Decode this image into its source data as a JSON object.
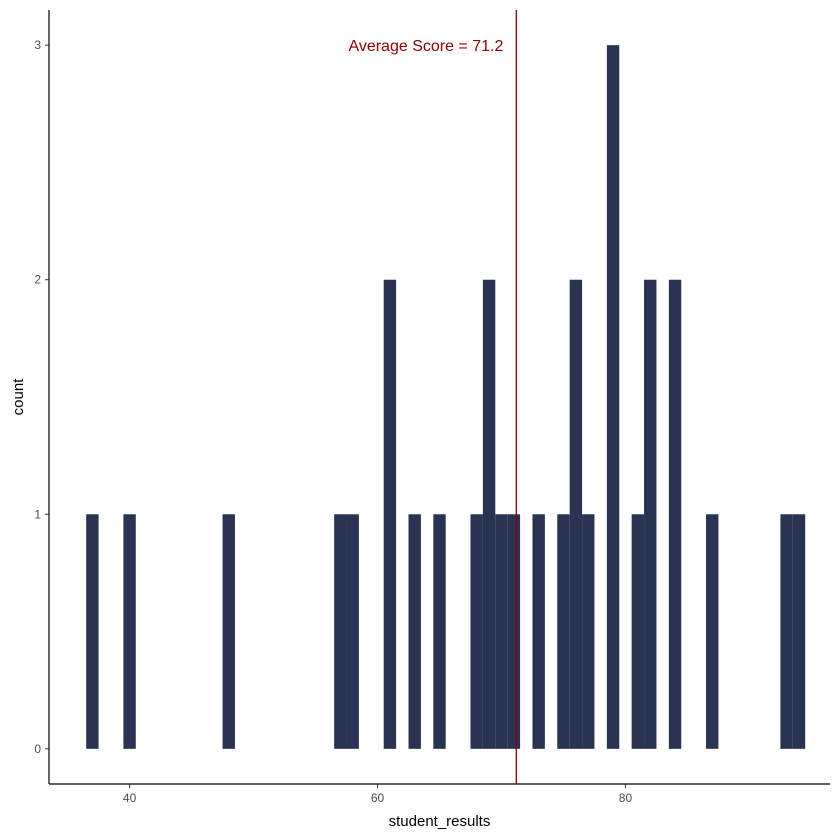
{
  "chart_data": {
    "type": "bar",
    "title": "",
    "xlabel": "student_results",
    "ylabel": "count",
    "xlim": [
      33.5,
      96.5
    ],
    "ylim": [
      -0.15,
      3.15
    ],
    "xticks": [
      40,
      60,
      80
    ],
    "yticks": [
      0,
      1,
      2,
      3
    ],
    "bin_width": 1.0,
    "bins": [
      {
        "x": 37.0,
        "count": 1
      },
      {
        "x": 40.0,
        "count": 1
      },
      {
        "x": 48.0,
        "count": 1
      },
      {
        "x": 57.0,
        "count": 1
      },
      {
        "x": 58.0,
        "count": 1
      },
      {
        "x": 61.0,
        "count": 2
      },
      {
        "x": 63.0,
        "count": 1
      },
      {
        "x": 65.0,
        "count": 1
      },
      {
        "x": 68.0,
        "count": 1
      },
      {
        "x": 69.0,
        "count": 2
      },
      {
        "x": 70.0,
        "count": 1
      },
      {
        "x": 71.0,
        "count": 1
      },
      {
        "x": 73.0,
        "count": 1
      },
      {
        "x": 75.0,
        "count": 1
      },
      {
        "x": 76.0,
        "count": 2
      },
      {
        "x": 77.0,
        "count": 1
      },
      {
        "x": 79.0,
        "count": 3
      },
      {
        "x": 81.0,
        "count": 1
      },
      {
        "x": 82.0,
        "count": 2
      },
      {
        "x": 84.0,
        "count": 2
      },
      {
        "x": 87.0,
        "count": 1
      },
      {
        "x": 93.0,
        "count": 1
      },
      {
        "x": 94.0,
        "count": 1
      }
    ],
    "mean_line": {
      "x": 71.2,
      "label": "Average Score = 71.2",
      "color": "#8b0000"
    },
    "bar_color": "#283452",
    "grid": false,
    "legend": "none"
  }
}
